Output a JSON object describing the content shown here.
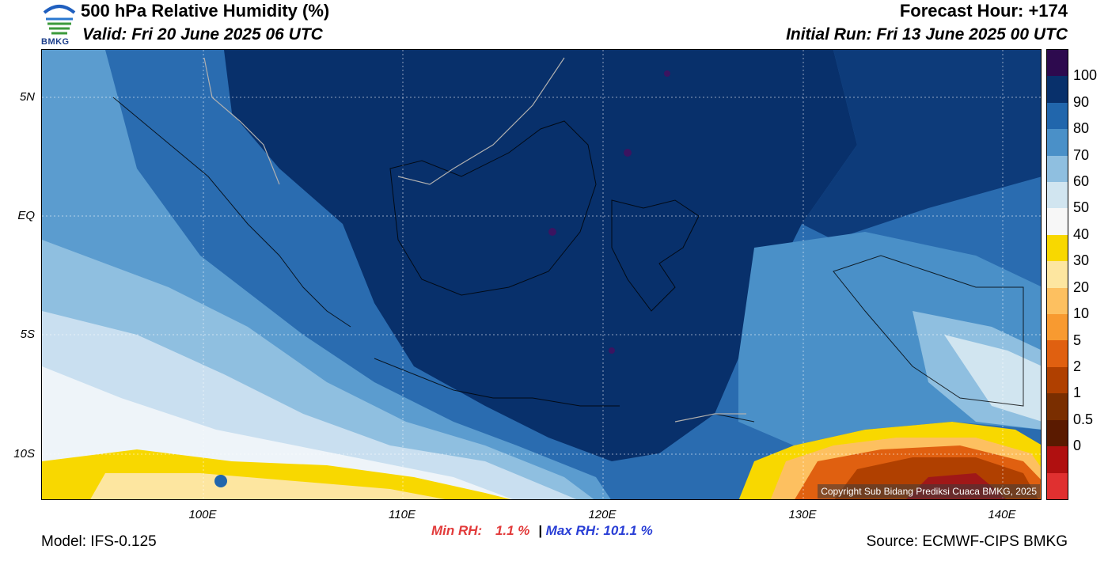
{
  "header": {
    "title": "500 hPa Relative Humidity (%)",
    "valid": "Valid: Fri 20 June 2025 06 UTC",
    "forecast_hour": "Forecast Hour: +174",
    "initial_run": "Initial Run: Fri 13 June 2025 00 UTC",
    "logo_text": "BMKG"
  },
  "map": {
    "lat_labels": [
      "5N",
      "EQ",
      "5S",
      "10S"
    ],
    "lon_labels": [
      "100E",
      "110E",
      "120E",
      "130E",
      "140E"
    ],
    "copyright": "Copyright Sub Bidang Prediksi Cuaca BMKG, 2025"
  },
  "stats": {
    "min_label": "Min RH:",
    "min_value": "1.1 %",
    "separator": "|",
    "max_label": "Max RH:",
    "max_value": "101.1 %"
  },
  "footer": {
    "model": "Model: IFS-0.125",
    "source": "Source: ECMWF-CIPS BMKG"
  },
  "colorbar": {
    "labels": [
      "100",
      "90",
      "80",
      "70",
      "60",
      "50",
      "40",
      "30",
      "20",
      "10",
      "5",
      "2",
      "1",
      "0.5",
      "0"
    ],
    "colors": [
      "#2d0a4e",
      "#08306b",
      "#2166ac",
      "#4a90c8",
      "#8fbfe0",
      "#d1e5f0",
      "#f7f7f7",
      "#f8d800",
      "#fde6a0",
      "#fdc060",
      "#f89a30",
      "#e06010",
      "#b04000",
      "#7a2e00",
      "#5a1a00",
      "#b01010",
      "#e03030"
    ]
  }
}
